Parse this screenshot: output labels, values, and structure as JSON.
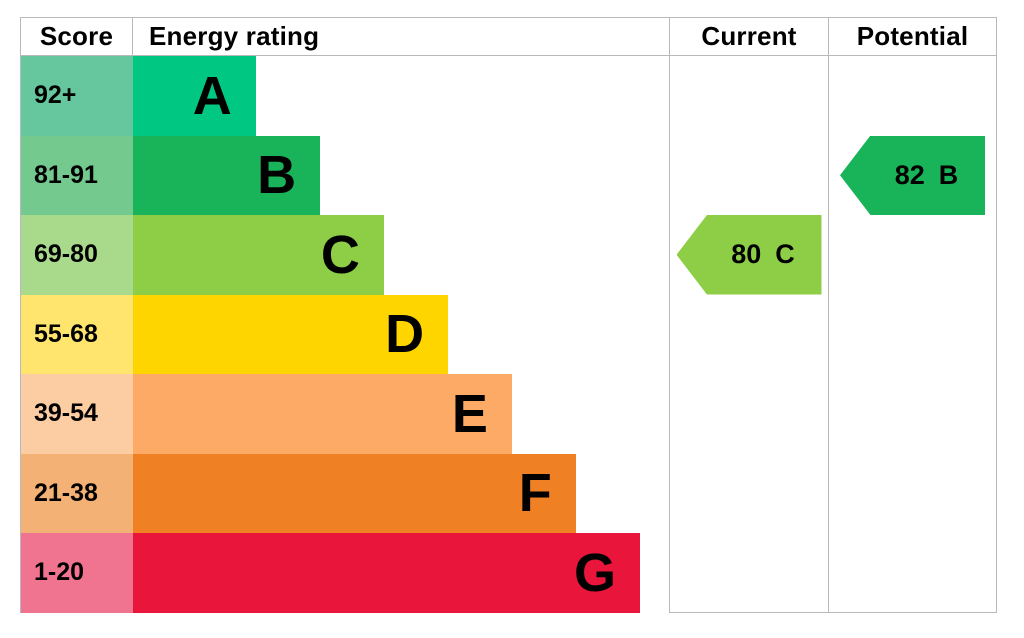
{
  "header": {
    "score": "Score",
    "energy_rating": "Energy rating",
    "current": "Current",
    "potential": "Potential"
  },
  "colors": {
    "border": "#b7babc",
    "text": "#000000",
    "background": "#ffffff"
  },
  "chart_data": {
    "type": "bar",
    "title": "Energy efficiency rating chart (EPC)",
    "orientation": "horizontal-staircase",
    "columns": [
      "Score",
      "Energy rating",
      "Current",
      "Potential"
    ],
    "bands": [
      {
        "letter": "A",
        "score_range": "92+",
        "bar_color": "#00c781",
        "score_bg": "#66c79f",
        "bar_length_pct": 22.9
      },
      {
        "letter": "B",
        "score_range": "81-91",
        "bar_color": "#19b459",
        "score_bg": "#74ca8e",
        "bar_length_pct": 34.9
      },
      {
        "letter": "C",
        "score_range": "69-80",
        "bar_color": "#8dce46",
        "score_bg": "#a9da8c",
        "bar_length_pct": 46.8
      },
      {
        "letter": "D",
        "score_range": "55-68",
        "bar_color": "#ffd500",
        "score_bg": "#ffe56e",
        "bar_length_pct": 58.8
      },
      {
        "letter": "E",
        "score_range": "39-54",
        "bar_color": "#fcaa65",
        "score_bg": "#fccda3",
        "bar_length_pct": 70.7
      },
      {
        "letter": "F",
        "score_range": "21-38",
        "bar_color": "#ef8023",
        "score_bg": "#f4b176",
        "bar_length_pct": 82.6
      },
      {
        "letter": "G",
        "score_range": "1-20",
        "bar_color": "#e9153b",
        "score_bg": "#f0738f",
        "bar_length_pct": 94.6
      }
    ],
    "current": {
      "value": "80",
      "band": "C",
      "arrow_color": "#8dce46"
    },
    "potential": {
      "value": "82",
      "band": "B",
      "arrow_color": "#19b459"
    }
  }
}
